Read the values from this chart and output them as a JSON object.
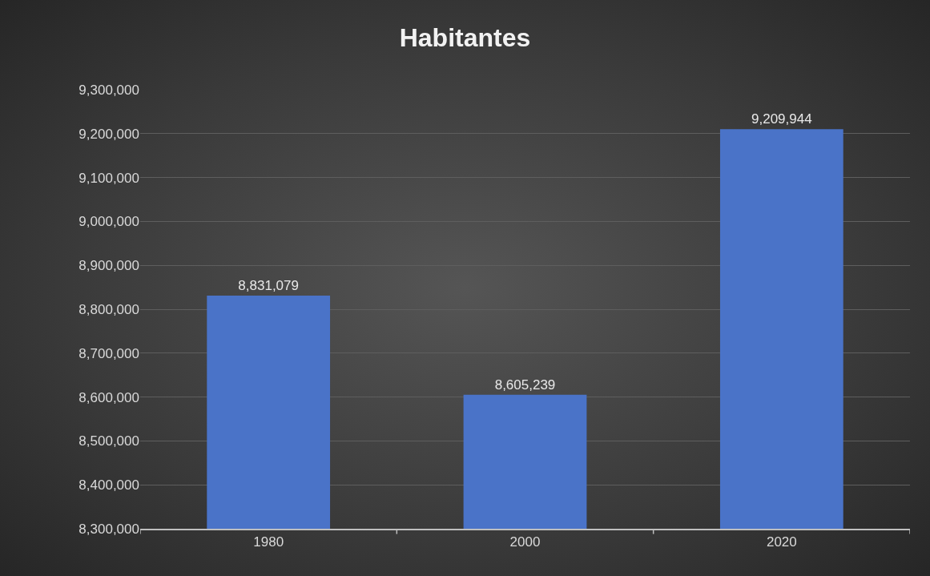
{
  "chart_data": {
    "type": "bar",
    "title": "Habitantes",
    "categories": [
      "1980",
      "2000",
      "2020"
    ],
    "values": [
      8831079,
      8605239,
      9209944
    ],
    "value_labels": [
      "8,831,079",
      "8,605,239",
      "9,209,944"
    ],
    "color": "#4a73c8",
    "ylim": [
      8300000,
      9300000
    ],
    "yticks": [
      {
        "value": 8300000,
        "label": "8,300,000"
      },
      {
        "value": 8400000,
        "label": "8,400,000"
      },
      {
        "value": 8500000,
        "label": "8,500,000"
      },
      {
        "value": 8600000,
        "label": "8,600,000"
      },
      {
        "value": 8700000,
        "label": "8,700,000"
      },
      {
        "value": 8800000,
        "label": "8,800,000"
      },
      {
        "value": 8900000,
        "label": "8,900,000"
      },
      {
        "value": 9000000,
        "label": "9,000,000"
      },
      {
        "value": 9100000,
        "label": "9,100,000"
      },
      {
        "value": 9200000,
        "label": "9,200,000"
      },
      {
        "value": 9300000,
        "label": "9,300,000"
      }
    ],
    "grid": "y"
  }
}
